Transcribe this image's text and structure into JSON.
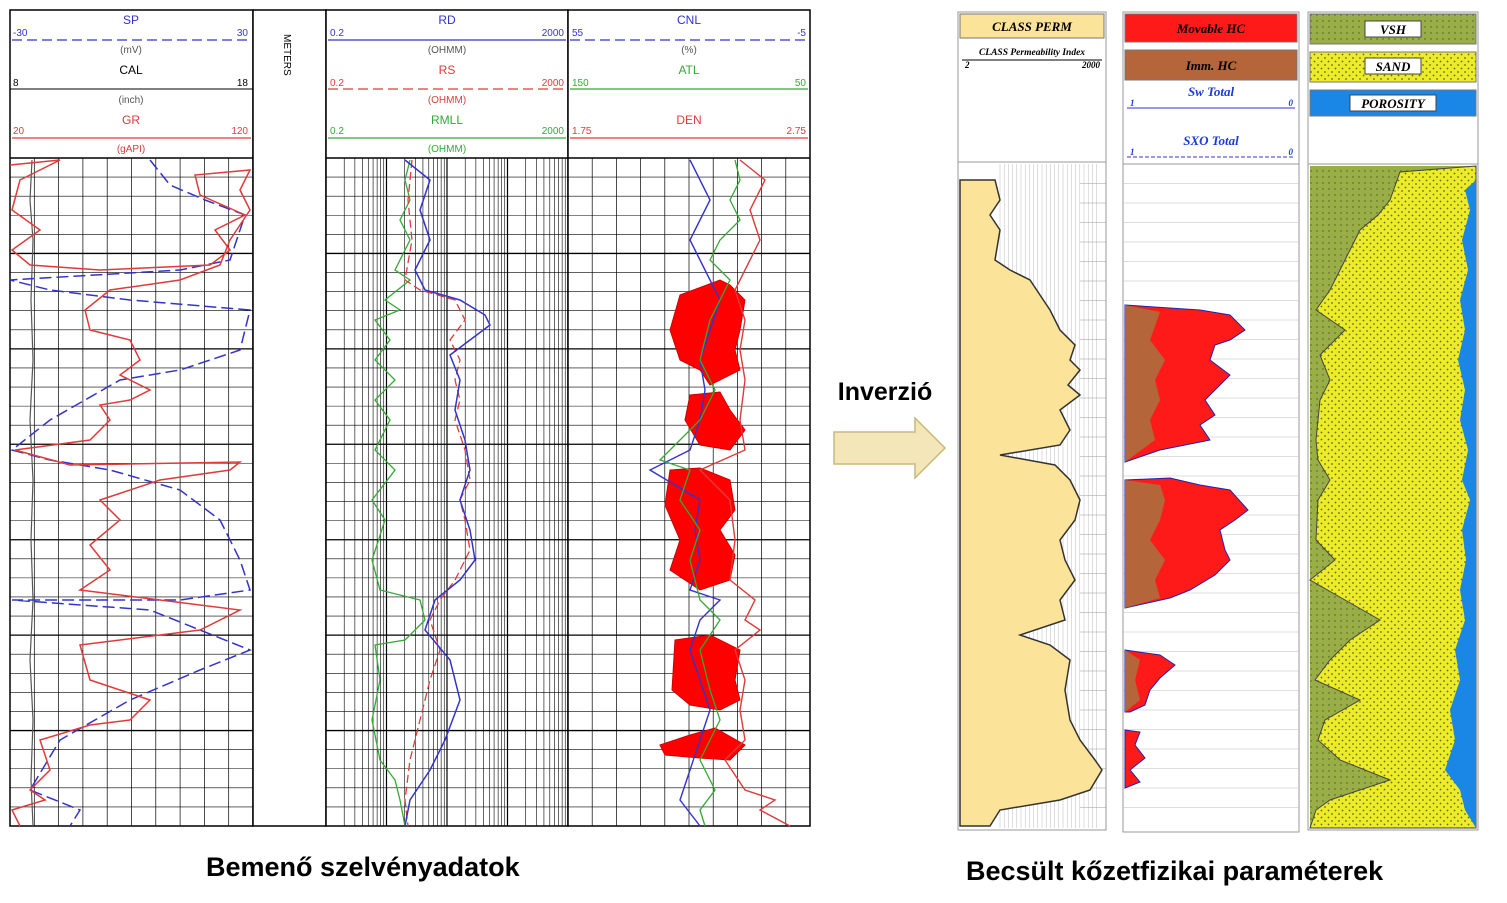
{
  "input_log": {
    "track1": {
      "sp": {
        "name": "SP",
        "min": "-30",
        "max": "30",
        "unit": "(mV)",
        "color": "#3333cc"
      },
      "cal": {
        "name": "CAL",
        "min": "8",
        "max": "18",
        "unit": "(inch)",
        "color": "#000000"
      },
      "gr": {
        "name": "GR",
        "min": "20",
        "max": "120",
        "unit": "(gAPI)",
        "color": "#e03a3a"
      }
    },
    "depth_label": "METERS",
    "track2": {
      "rd": {
        "name": "RD",
        "min": "0.2",
        "max": "2000",
        "unit": "(OHMM)",
        "color": "#3333cc"
      },
      "rs": {
        "name": "RS",
        "min": "0.2",
        "max": "2000",
        "unit": "(OHMM)",
        "color": "#e03a3a"
      },
      "rmll": {
        "name": "RMLL",
        "min": "0.2",
        "max": "2000",
        "unit": "(OHMM)",
        "color": "#33aa33"
      }
    },
    "track3": {
      "cnl": {
        "name": "CNL",
        "min": "55",
        "max": "-5",
        "unit": "(%)",
        "color": "#3333cc"
      },
      "atl": {
        "name": "ATL",
        "min": "150",
        "max": "50",
        "color": "#33aa33"
      },
      "den": {
        "name": "DEN",
        "min": "1.75",
        "max": "2.75",
        "color": "#e03a3a"
      }
    }
  },
  "arrow_label": "Inverzió",
  "output_log": {
    "perm": {
      "title": "CLASS PERM",
      "subtitle": "CLASS Permeability Index",
      "min": "2",
      "max": "2000",
      "fill": "#fbe39a"
    },
    "hc": {
      "movable": {
        "title": "Movable HC",
        "color": "#ff1a1a"
      },
      "imm": {
        "title": "Imm. HC",
        "color": "#b5653a"
      },
      "sw": {
        "title": "Sw Total",
        "min": "1",
        "max": "0"
      },
      "sxo": {
        "title": "SXO Total",
        "min": "1",
        "max": "0"
      }
    },
    "lith": {
      "vsh": {
        "title": "VSH",
        "color": "#9aae48"
      },
      "sand": {
        "title": "SAND",
        "color": "#ecec2a"
      },
      "porosity": {
        "title": "POROSITY",
        "color": "#1a86e6"
      }
    }
  },
  "captions": {
    "left": "Bemenő szelvényadatok",
    "right": "Becsült kőzetfizikai paraméterek"
  }
}
